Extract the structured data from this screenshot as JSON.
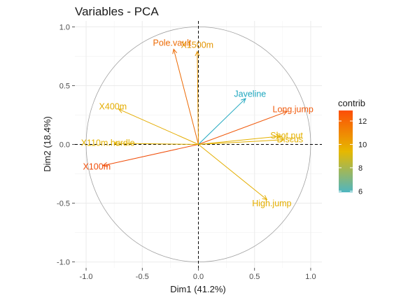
{
  "chart_data": {
    "type": "scatter",
    "title": "Variables - PCA",
    "xlabel": "Dim1 (41.2%)",
    "ylabel": "Dim2 (18.4%)",
    "xlim": [
      -1.1,
      1.1
    ],
    "ylim": [
      -1.05,
      1.05
    ],
    "x_ticks": [
      -1.0,
      -0.5,
      0.0,
      0.5,
      1.0
    ],
    "y_ticks": [
      -1.0,
      -0.5,
      0.0,
      0.5,
      1.0
    ],
    "x_tick_labels": [
      "-1.0",
      "-0.5",
      "0.0",
      "0.5",
      "1.0"
    ],
    "y_tick_labels": [
      "-1.0",
      "-0.5",
      "0.0",
      "0.5",
      "1.0"
    ],
    "grid": true,
    "unit_circle": true,
    "reference_lines": {
      "x": 0,
      "y": 0,
      "style": "dashed"
    },
    "variables": [
      {
        "name": "X100m",
        "x": -0.85,
        "y": -0.18,
        "contrib": 12.6,
        "color": "#f04e0a"
      },
      {
        "name": "Long.jump",
        "x": 0.79,
        "y": 0.28,
        "contrib": 12.4,
        "color": "#f05a0c"
      },
      {
        "name": "Shot.put",
        "x": 0.73,
        "y": 0.07,
        "contrib": 10.3,
        "color": "#e4b100"
      },
      {
        "name": "High.jump",
        "x": 0.61,
        "y": -0.47,
        "contrib": 10.1,
        "color": "#e4ae00"
      },
      {
        "name": "X400m",
        "x": -0.71,
        "y": 0.3,
        "contrib": 10.2,
        "color": "#e4ac00"
      },
      {
        "name": "X110m.hurdle",
        "x": -0.75,
        "y": 0.01,
        "contrib": 10.0,
        "color": "#e4b300"
      },
      {
        "name": "Discus",
        "x": 0.76,
        "y": 0.04,
        "contrib": 10.2,
        "color": "#e4b000"
      },
      {
        "name": "Pole.vault",
        "x": -0.22,
        "y": 0.81,
        "contrib": 12.0,
        "color": "#ec6a04"
      },
      {
        "name": "Javeline",
        "x": 0.42,
        "y": 0.39,
        "contrib": 6.1,
        "color": "#1fa7bf"
      },
      {
        "name": "X1500m",
        "x": -0.01,
        "y": 0.79,
        "contrib": 11.0,
        "color": "#e39400"
      }
    ],
    "legend": {
      "title": "contrib",
      "placement": "right",
      "min": 5.9,
      "max": 12.9,
      "ticks": [
        6,
        8,
        10,
        12
      ],
      "tick_labels": [
        "6",
        "8",
        "10",
        "12"
      ],
      "gradient": [
        "#4fb6c1",
        "#e6b800",
        "#fc4e07"
      ]
    }
  }
}
